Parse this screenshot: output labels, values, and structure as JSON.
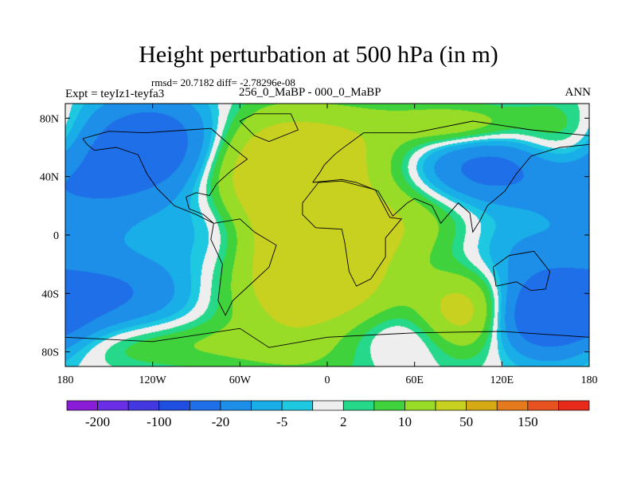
{
  "title": "Height perturbation at 500 hPa (in m)",
  "stats_line": "rmsd= 20.7182 diff= -2.78296e-08",
  "experiment": "Expt = teyIz1-teyfa3",
  "period": "256_0_MaBP - 000_0_MaBP",
  "season": "ANN",
  "lat_ticks": [
    {
      "lat": 80,
      "label": "80N"
    },
    {
      "lat": 40,
      "label": "40N"
    },
    {
      "lat": 0,
      "label": "0"
    },
    {
      "lat": -40,
      "label": "40S"
    },
    {
      "lat": -80,
      "label": "80S"
    }
  ],
  "lon_ticks": [
    {
      "lon": -180,
      "label": "180"
    },
    {
      "lon": -120,
      "label": "120W"
    },
    {
      "lon": -60,
      "label": "60W"
    },
    {
      "lon": 0,
      "label": "0"
    },
    {
      "lon": 60,
      "label": "60E"
    },
    {
      "lon": 120,
      "label": "120E"
    },
    {
      "lon": 180,
      "label": "180"
    }
  ],
  "colorbar": {
    "colors": [
      "#8a1bd6",
      "#6a2ee6",
      "#4338e0",
      "#1f4fe0",
      "#1f6fe8",
      "#1d8fe8",
      "#19aee8",
      "#1ec8e0",
      "#eeeeee",
      "#26d88a",
      "#40d23c",
      "#98dc28",
      "#c8d020",
      "#d6aa14",
      "#e47a1c",
      "#e85220",
      "#e82a1a"
    ],
    "labels": [
      {
        "index": 1,
        "text": "-200"
      },
      {
        "index": 3,
        "text": "-100"
      },
      {
        "index": 5,
        "text": "-20"
      },
      {
        "index": 7,
        "text": "-5"
      },
      {
        "index": 9,
        "text": "2"
      },
      {
        "index": 11,
        "text": "10"
      },
      {
        "index": 13,
        "text": "50"
      },
      {
        "index": 15,
        "text": "150"
      }
    ]
  },
  "field": {
    "background_color": "#eeeeee",
    "anomalies": [
      {
        "lon": -115,
        "lat": 60,
        "value": -35,
        "sx": 38,
        "sy": 24
      },
      {
        "lon": -155,
        "lat": 25,
        "value": -10,
        "sx": 25,
        "sy": 30
      },
      {
        "lon": -50,
        "lat": 45,
        "value": 30,
        "sx": 35,
        "sy": 28
      },
      {
        "lon": 15,
        "lat": 60,
        "value": 16,
        "sx": 40,
        "sy": 22
      },
      {
        "lon": 115,
        "lat": 45,
        "value": -28,
        "sx": 45,
        "sy": 18
      },
      {
        "lon": 90,
        "lat": 75,
        "value": 18,
        "sx": 30,
        "sy": 10
      },
      {
        "lon": 160,
        "lat": 60,
        "value": 15,
        "sx": 25,
        "sy": 22
      },
      {
        "lon": -75,
        "lat": 5,
        "value": -14,
        "sx": 28,
        "sy": 22
      },
      {
        "lon": -10,
        "lat": -20,
        "value": 40,
        "sx": 40,
        "sy": 42
      },
      {
        "lon": 60,
        "lat": 10,
        "value": 12,
        "sx": 35,
        "sy": 20
      },
      {
        "lon": -140,
        "lat": -40,
        "value": -18,
        "sx": 35,
        "sy": 18
      },
      {
        "lon": 135,
        "lat": -10,
        "value": -10,
        "sx": 40,
        "sy": 18
      },
      {
        "lon": 95,
        "lat": -55,
        "value": 32,
        "sx": 22,
        "sy": 20
      },
      {
        "lon": 155,
        "lat": -55,
        "value": -40,
        "sx": 30,
        "sy": 20
      },
      {
        "lon": 40,
        "lat": -70,
        "value": -12,
        "sx": 60,
        "sy": 15
      },
      {
        "lon": -100,
        "lat": -75,
        "value": 10,
        "sx": 80,
        "sy": 12
      },
      {
        "lon": 170,
        "lat": 30,
        "value": -8,
        "sx": 20,
        "sy": 15
      }
    ]
  },
  "coastlines": [
    [
      [
        -168,
        66
      ],
      [
        -150,
        71
      ],
      [
        -125,
        70
      ],
      [
        -95,
        72
      ],
      [
        -80,
        73
      ],
      [
        -65,
        60
      ],
      [
        -55,
        52
      ],
      [
        -66,
        44
      ],
      [
        -76,
        35
      ],
      [
        -81,
        27
      ],
      [
        -90,
        29
      ],
      [
        -97,
        26
      ],
      [
        -95,
        18
      ],
      [
        -85,
        14
      ],
      [
        -78,
        8
      ],
      [
        -90,
        14
      ],
      [
        -105,
        20
      ],
      [
        -117,
        32
      ],
      [
        -124,
        42
      ],
      [
        -130,
        55
      ],
      [
        -145,
        60
      ],
      [
        -160,
        58
      ],
      [
        -165,
        62
      ],
      [
        -168,
        66
      ]
    ],
    [
      [
        -50,
        83
      ],
      [
        -25,
        83
      ],
      [
        -20,
        72
      ],
      [
        -40,
        64
      ],
      [
        -50,
        68
      ],
      [
        -60,
        78
      ],
      [
        -50,
        83
      ]
    ],
    [
      [
        -78,
        8
      ],
      [
        -60,
        11
      ],
      [
        -50,
        2
      ],
      [
        -35,
        -7
      ],
      [
        -40,
        -22
      ],
      [
        -52,
        -33
      ],
      [
        -65,
        -45
      ],
      [
        -70,
        -55
      ],
      [
        -75,
        -45
      ],
      [
        -72,
        -20
      ],
      [
        -80,
        -3
      ],
      [
        -78,
        8
      ]
    ],
    [
      [
        -10,
        36
      ],
      [
        -5,
        43
      ],
      [
        -2,
        48
      ],
      [
        5,
        55
      ],
      [
        10,
        59
      ],
      [
        25,
        70
      ],
      [
        60,
        70
      ],
      [
        100,
        78
      ],
      [
        140,
        72
      ],
      [
        180,
        68
      ],
      [
        180,
        62
      ],
      [
        160,
        60
      ],
      [
        140,
        54
      ],
      [
        130,
        42
      ],
      [
        122,
        30
      ],
      [
        110,
        20
      ],
      [
        105,
        10
      ],
      [
        100,
        2
      ],
      [
        98,
        15
      ],
      [
        90,
        22
      ],
      [
        78,
        8
      ],
      [
        72,
        20
      ],
      [
        60,
        25
      ],
      [
        55,
        22
      ],
      [
        45,
        13
      ],
      [
        35,
        30
      ],
      [
        30,
        32
      ],
      [
        20,
        36
      ],
      [
        10,
        38
      ],
      [
        -10,
        36
      ]
    ],
    [
      [
        -17,
        22
      ],
      [
        -17,
        14
      ],
      [
        -8,
        5
      ],
      [
        10,
        4
      ],
      [
        12,
        -5
      ],
      [
        15,
        -25
      ],
      [
        20,
        -35
      ],
      [
        30,
        -30
      ],
      [
        40,
        -15
      ],
      [
        40,
        -2
      ],
      [
        51,
        11
      ],
      [
        43,
        12
      ],
      [
        33,
        31
      ],
      [
        10,
        37
      ],
      [
        -6,
        36
      ],
      [
        -17,
        22
      ]
    ],
    [
      [
        114,
        -22
      ],
      [
        125,
        -14
      ],
      [
        137,
        -12
      ],
      [
        142,
        -11
      ],
      [
        153,
        -25
      ],
      [
        150,
        -37
      ],
      [
        140,
        -38
      ],
      [
        130,
        -32
      ],
      [
        116,
        -35
      ],
      [
        114,
        -22
      ]
    ],
    [
      [
        -180,
        -70
      ],
      [
        -120,
        -73
      ],
      [
        -60,
        -64
      ],
      [
        -40,
        -77
      ],
      [
        0,
        -70
      ],
      [
        60,
        -67
      ],
      [
        120,
        -66
      ],
      [
        180,
        -70
      ]
    ]
  ]
}
